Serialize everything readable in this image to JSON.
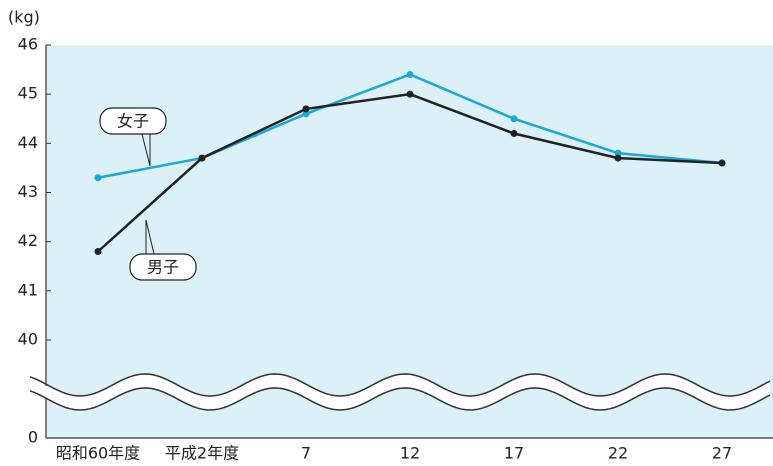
{
  "chart_data": {
    "type": "line",
    "y_label": "(kg)",
    "categories": [
      "昭和60年度",
      "平成2年度",
      "7",
      "12",
      "17",
      "22",
      "27"
    ],
    "series": [
      {
        "name": "女子",
        "color": "#1aa7dc",
        "values": [
          43.3,
          43.7,
          44.6,
          45.4,
          44.5,
          43.8,
          43.6
        ]
      },
      {
        "name": "男子",
        "color": "#222222",
        "values": [
          41.8,
          43.7,
          44.7,
          45.0,
          44.2,
          43.7,
          43.6
        ]
      }
    ],
    "ylim": [
      0,
      46
    ],
    "yticks": [
      0,
      40,
      41,
      42,
      43,
      44,
      45,
      46
    ],
    "axis_break": [
      0,
      40
    ],
    "grid": false
  }
}
